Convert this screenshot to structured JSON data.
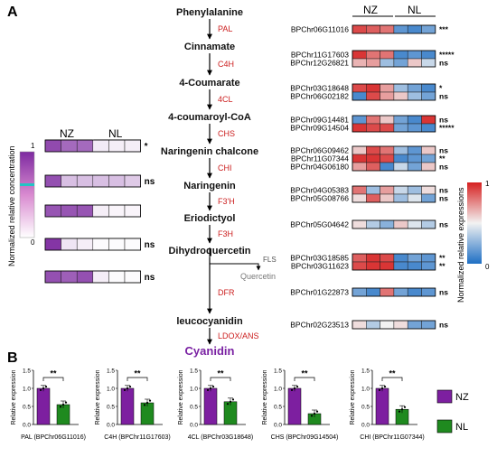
{
  "panel_labels": {
    "a": "A",
    "b": "B"
  },
  "pathway": {
    "compounds": [
      "Phenylalanine",
      "Cinnamate",
      "4-Coumarate",
      "4-coumaroyl-CoA",
      "Naringenin chalcone",
      "Naringenin",
      "Eriodictyol",
      "Dihydroquercetin",
      "leucocyanidin",
      "Cyanidin"
    ],
    "enzymes": [
      "PAL",
      "C4H",
      "4CL",
      "CHS",
      "CHI",
      "F3'H",
      "F3H",
      "DFR",
      "LDOX/ANS"
    ],
    "branch_enzyme": "FLS",
    "branch_product": "Quercetin"
  },
  "metabolite_heatmap": {
    "group_labels": [
      "NZ",
      "NL"
    ],
    "rows": [
      {
        "cells": [
          0.85,
          0.7,
          0.7,
          0.1,
          0.08,
          0.08
        ],
        "sig": "*"
      },
      {
        "cells": [
          0.82,
          0.3,
          0.3,
          0.3,
          0.3,
          0.25
        ],
        "sig": "ns"
      },
      {
        "cells": [
          0.8,
          0.8,
          0.8,
          0.08,
          0.05,
          0.05
        ],
        "sig": ""
      },
      {
        "cells": [
          0.95,
          0.12,
          0.08,
          0.02,
          0.02,
          0.02
        ],
        "sig": "ns"
      },
      {
        "cells": [
          0.82,
          0.75,
          0.82,
          0.08,
          0.02,
          0.02
        ],
        "sig": "ns"
      }
    ],
    "legend": {
      "title": "Normalized relative concentration",
      "max_label": "1",
      "min_label": "0"
    }
  },
  "gene_heatmap": {
    "group_labels": [
      "NZ",
      "NL"
    ],
    "legend": {
      "title": "Normalized relative expressions",
      "max_label": "1",
      "min_label": "0"
    },
    "genes": [
      {
        "id": "BPChr06G11016",
        "cells": [
          0.9,
          0.85,
          0.8,
          0.15,
          0.1,
          0.2
        ],
        "sig": "***"
      },
      {
        "id": "BPChr11G17603",
        "cells": [
          0.95,
          0.8,
          0.8,
          0.1,
          0.15,
          0.1
        ],
        "sig": "*****"
      },
      {
        "id": "BPChr12G26821",
        "cells": [
          0.65,
          0.7,
          0.3,
          0.2,
          0.6,
          0.4
        ],
        "sig": "ns"
      },
      {
        "id": "BPChr03G18648",
        "cells": [
          0.9,
          0.95,
          0.7,
          0.3,
          0.2,
          0.1
        ],
        "sig": "*"
      },
      {
        "id": "BPChr06G02182",
        "cells": [
          0.1,
          0.9,
          0.7,
          0.6,
          0.3,
          0.2
        ],
        "sig": "ns"
      },
      {
        "id": "BPChr09G14481",
        "cells": [
          0.15,
          0.8,
          0.6,
          0.2,
          0.1,
          0.95
        ],
        "sig": "ns"
      },
      {
        "id": "BPChr09G14504",
        "cells": [
          0.95,
          0.9,
          0.9,
          0.2,
          0.15,
          0.1
        ],
        "sig": "*****"
      },
      {
        "id": "BPChr06G09462",
        "cells": [
          0.6,
          0.9,
          0.8,
          0.3,
          0.15,
          0.6
        ],
        "sig": "ns"
      },
      {
        "id": "BPChr11G07344",
        "cells": [
          0.95,
          0.95,
          0.9,
          0.1,
          0.15,
          0.2
        ],
        "sig": "**"
      },
      {
        "id": "BPChr04G06180",
        "cells": [
          0.7,
          0.85,
          0.1,
          0.4,
          0.2,
          0.6
        ],
        "sig": "ns"
      },
      {
        "id": "BPChr04G05383",
        "cells": [
          0.8,
          0.3,
          0.7,
          0.4,
          0.3,
          0.55
        ],
        "sig": "ns"
      },
      {
        "id": "BPChr05G08766",
        "cells": [
          0.55,
          0.85,
          0.6,
          0.3,
          0.45,
          0.2
        ],
        "sig": "ns"
      },
      {
        "id": "BPChr05G04642",
        "cells": [
          0.55,
          0.35,
          0.25,
          0.6,
          0.45,
          0.35
        ],
        "sig": "ns"
      },
      {
        "id": "BPChr03G18585",
        "cells": [
          0.85,
          0.95,
          0.9,
          0.1,
          0.2,
          0.15
        ],
        "sig": "**"
      },
      {
        "id": "BPChr03G11623",
        "cells": [
          0.9,
          0.95,
          0.95,
          0.1,
          0.1,
          0.15
        ],
        "sig": "**"
      },
      {
        "id": "BPChr01G22873",
        "cells": [
          0.2,
          0.1,
          0.8,
          0.2,
          0.1,
          0.15
        ],
        "sig": "ns"
      },
      {
        "id": "BPChr02G23513",
        "cells": [
          0.55,
          0.35,
          0.5,
          0.55,
          0.2,
          0.2
        ],
        "sig": "ns"
      }
    ]
  },
  "colors": {
    "enzyme_text": "#cc2020",
    "cyanidin_text": "#7a22a3",
    "nz_bar": "#7d1fa0",
    "nl_bar": "#1f8a1f",
    "heat_low": "#1f6fc4",
    "heat_mid": "#f2f2f2",
    "heat_high": "#d62020",
    "conc_high": "#7d2aa0",
    "conc_low": "#ffffff"
  },
  "bar_charts": {
    "ylabel": "Relative expression",
    "sig": "**",
    "legend": [
      "NZ",
      "NL"
    ],
    "chart_data": [
      {
        "type": "bar",
        "xlabel": "PAL (BPChr06G11016)",
        "categories": [
          "NZ",
          "NL"
        ],
        "values": [
          1.0,
          0.55
        ],
        "ylim": [
          0,
          1.5
        ],
        "yticks": [
          "0.0",
          "0.5",
          "1.0",
          "1.5"
        ]
      },
      {
        "type": "bar",
        "xlabel": "C4H (BPChr11G17603)",
        "categories": [
          "NZ",
          "NL"
        ],
        "values": [
          1.0,
          0.6
        ],
        "ylim": [
          0,
          1.5
        ],
        "yticks": [
          "0.0",
          "0.5",
          "1.0",
          "1.5"
        ]
      },
      {
        "type": "bar",
        "xlabel": "4CL (BPChr03G18648)",
        "categories": [
          "NZ",
          "NL"
        ],
        "values": [
          1.0,
          0.63
        ],
        "ylim": [
          0,
          1.5
        ],
        "yticks": [
          "0.0",
          "0.5",
          "1.0",
          "1.5"
        ]
      },
      {
        "type": "bar",
        "xlabel": "CHS (BPChr09G14504)",
        "categories": [
          "NZ",
          "NL"
        ],
        "values": [
          1.0,
          0.3
        ],
        "ylim": [
          0,
          1.5
        ],
        "yticks": [
          "0.0",
          "0.5",
          "1.0",
          "1.5"
        ]
      },
      {
        "type": "bar",
        "xlabel": "CHI (BPChr11G07344)",
        "categories": [
          "NZ",
          "NL"
        ],
        "values": [
          1.0,
          0.42
        ],
        "ylim": [
          0,
          1.5
        ],
        "yticks": [
          "0.0",
          "0.5",
          "1.0",
          "1.5"
        ]
      }
    ]
  }
}
